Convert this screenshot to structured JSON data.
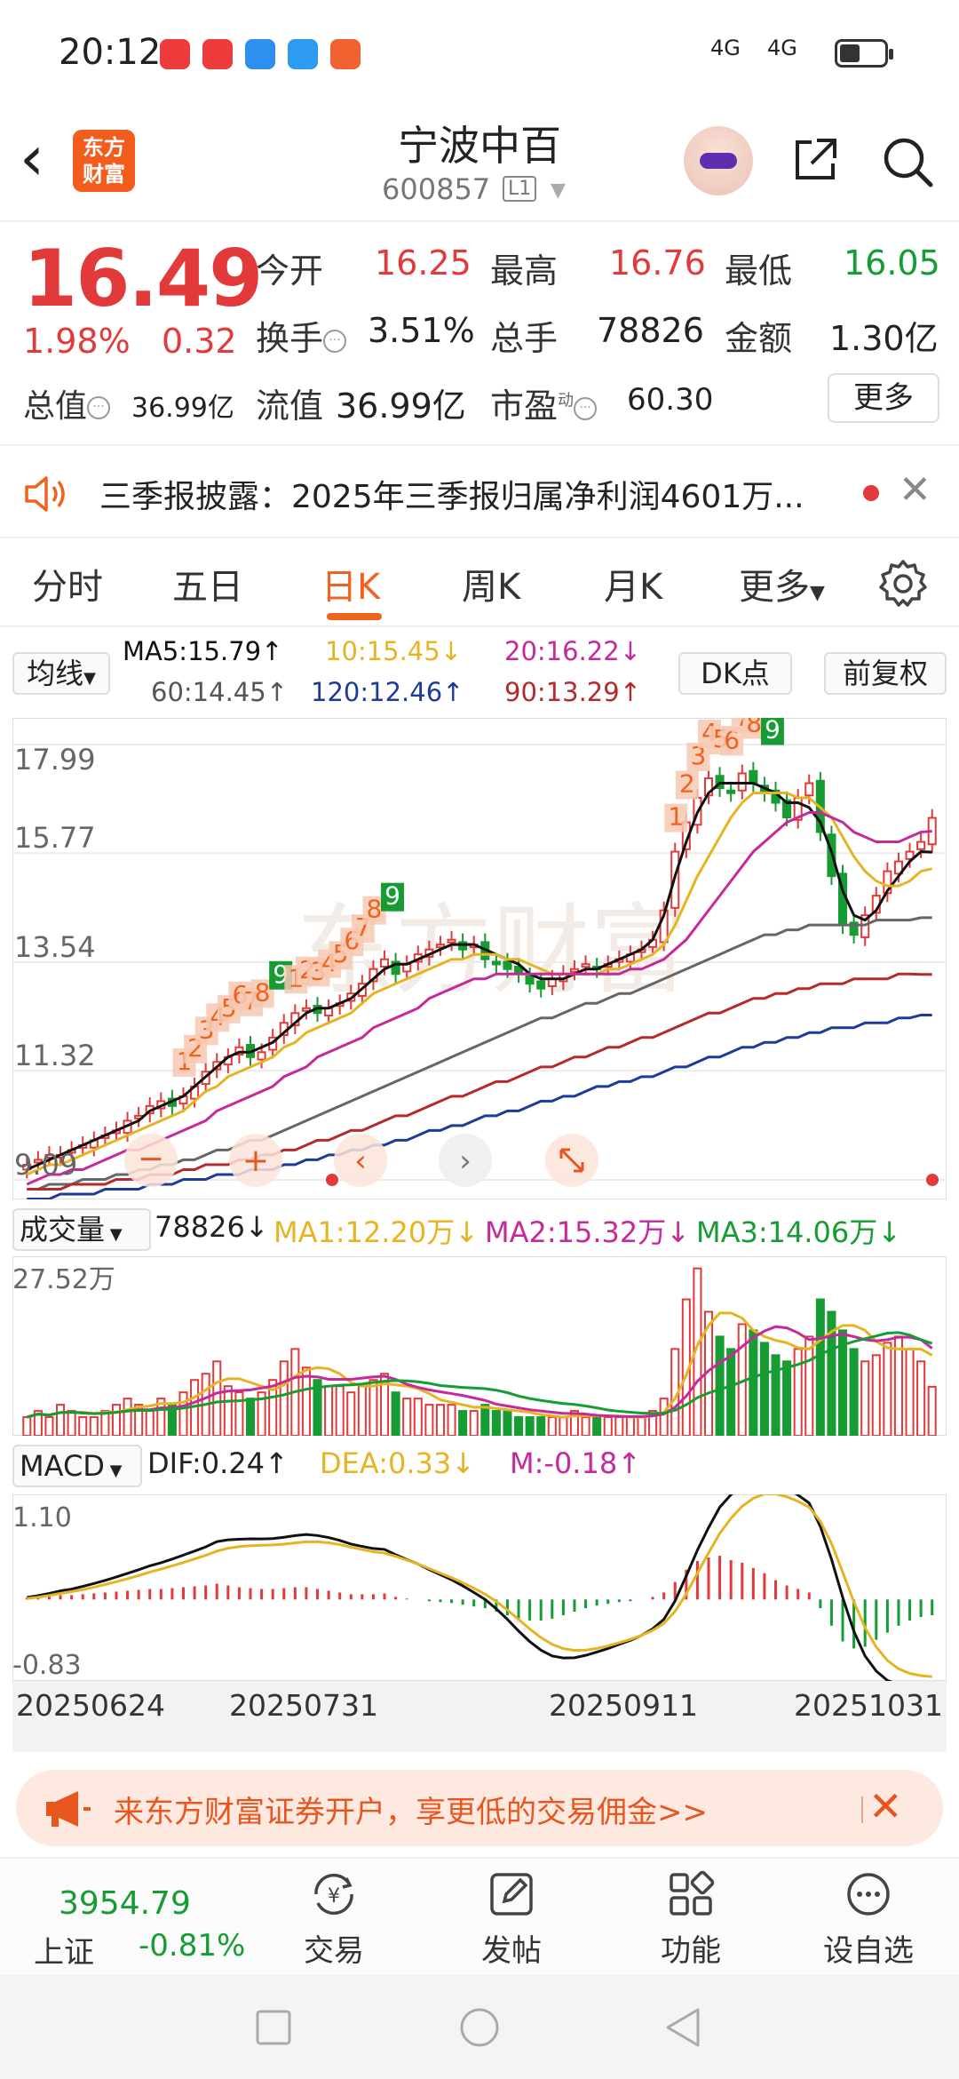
{
  "status_bar": {
    "time": "20:12",
    "signal1": "4G",
    "signal2": "4G"
  },
  "header": {
    "logo_line1": "东方",
    "logo_line2": "财富",
    "stock_name": "宁波中百",
    "stock_code": "600857",
    "level": "L1"
  },
  "quote": {
    "price": "16.49",
    "change_pct": "1.98%",
    "change_amt": "0.32",
    "open_label": "今开",
    "open": "16.25",
    "high_label": "最高",
    "high": "16.76",
    "low_label": "最低",
    "low": "16.05",
    "turnover_label": "换手",
    "turnover": "3.51%",
    "volume_label": "总手",
    "volume": "78826",
    "amount_label": "金额",
    "amount": "1.30亿",
    "total_value_label": "总值",
    "total_value": "36.99亿",
    "float_value_label": "流值",
    "float_value": "36.99亿",
    "pe_label": "市盈",
    "pe_sup": "动",
    "pe": "60.30",
    "more_label": "更多"
  },
  "announcement": {
    "text": "三季报披露：2025年三季报归属净利润4601万..."
  },
  "tabs": [
    {
      "label": "分时"
    },
    {
      "label": "五日"
    },
    {
      "label": "日K"
    },
    {
      "label": "周K"
    },
    {
      "label": "月K"
    },
    {
      "label": "更多"
    }
  ],
  "ma_row": {
    "toggle": "均线",
    "ma5": "MA5:15.79↑",
    "ma10": "10:15.45↓",
    "ma20": "20:16.22↓",
    "ma60": "60:14.45↑",
    "ma120": "120:12.46↑",
    "ma90": "90:13.29↑",
    "dk_button": "DK点",
    "fq_button": "前复权"
  },
  "colors": {
    "up": "#e23a3a",
    "down": "#169c33",
    "accent": "#f0631c",
    "ma5": "#111111",
    "ma10": "#e6b422",
    "ma20": "#c62a9a",
    "ma60": "#666666",
    "ma90": "#b52a2a",
    "ma120": "#1e3a9a"
  },
  "chart_data": [
    {
      "type": "candlestick",
      "title": "",
      "y_ticks": [
        "17.99",
        "15.77",
        "13.54",
        "11.32",
        "9.09"
      ],
      "ylim": [
        9.09,
        17.99
      ],
      "x_ticks": [
        "20250624",
        "20250731",
        "20250911",
        "20251031"
      ],
      "signal_labels": [
        "1",
        "2",
        "3",
        "4",
        "5",
        "6",
        "7",
        "8",
        "9",
        "1",
        "2",
        "3",
        "4",
        "5",
        "6",
        "7",
        "8",
        "9",
        "1",
        "2",
        "3",
        "4",
        "5",
        "6",
        "7",
        "8",
        "9"
      ],
      "close": [
        9.4,
        9.5,
        9.6,
        9.6,
        9.7,
        9.8,
        9.9,
        10.0,
        10.1,
        10.3,
        10.4,
        10.6,
        10.7,
        10.6,
        10.8,
        11.0,
        11.3,
        11.5,
        11.6,
        11.8,
        11.6,
        11.7,
        12.0,
        12.3,
        12.5,
        12.6,
        12.5,
        12.6,
        12.7,
        12.9,
        13.1,
        13.4,
        13.6,
        13.3,
        13.5,
        13.7,
        13.8,
        13.9,
        14.0,
        13.8,
        13.9,
        13.6,
        13.5,
        13.4,
        13.3,
        13.1,
        13.0,
        13.2,
        13.3,
        13.4,
        13.5,
        13.4,
        13.5,
        13.6,
        13.7,
        13.8,
        14.0,
        14.6,
        15.8,
        16.4,
        16.9,
        17.3,
        17.1,
        17.0,
        17.4,
        17.2,
        17.0,
        16.8,
        16.5,
        16.9,
        17.2,
        16.2,
        15.3,
        14.3,
        14.1,
        14.5,
        14.9,
        15.4,
        15.6,
        15.8,
        16.0,
        16.49
      ],
      "ma5": [
        9.3,
        9.4,
        9.5,
        9.6,
        9.7,
        9.8,
        9.9,
        10.0,
        10.1,
        10.2,
        10.3,
        10.5,
        10.6,
        10.7,
        10.8,
        11.0,
        11.2,
        11.4,
        11.6,
        11.7,
        11.7,
        11.8,
        11.9,
        12.1,
        12.3,
        12.5,
        12.6,
        12.6,
        12.7,
        12.8,
        13.0,
        13.2,
        13.4,
        13.5,
        13.5,
        13.6,
        13.7,
        13.8,
        13.9,
        13.9,
        13.9,
        13.8,
        13.7,
        13.6,
        13.5,
        13.3,
        13.2,
        13.2,
        13.2,
        13.3,
        13.4,
        13.4,
        13.5,
        13.6,
        13.7,
        13.8,
        14.0,
        14.5,
        15.3,
        16.0,
        16.6,
        17.0,
        17.2,
        17.2,
        17.2,
        17.2,
        17.1,
        17.0,
        16.8,
        16.8,
        16.7,
        16.4,
        15.8,
        15.0,
        14.5,
        14.4,
        14.6,
        15.0,
        15.3,
        15.6,
        15.8,
        15.79
      ],
      "ma10": [
        9.2,
        9.3,
        9.4,
        9.4,
        9.5,
        9.6,
        9.7,
        9.8,
        9.9,
        10.0,
        10.1,
        10.2,
        10.3,
        10.4,
        10.5,
        10.7,
        10.9,
        11.0,
        11.2,
        11.3,
        11.4,
        11.5,
        11.6,
        11.8,
        11.9,
        12.1,
        12.2,
        12.3,
        12.4,
        12.5,
        12.7,
        12.9,
        13.0,
        13.1,
        13.2,
        13.3,
        13.4,
        13.5,
        13.6,
        13.6,
        13.7,
        13.7,
        13.7,
        13.6,
        13.6,
        13.5,
        13.4,
        13.3,
        13.3,
        13.3,
        13.3,
        13.3,
        13.4,
        13.4,
        13.5,
        13.6,
        13.7,
        13.9,
        14.3,
        14.8,
        15.3,
        15.7,
        16.1,
        16.5,
        16.8,
        17.0,
        17.0,
        17.0,
        17.0,
        16.9,
        16.9,
        16.7,
        16.5,
        16.1,
        15.7,
        15.4,
        15.2,
        15.1,
        15.1,
        15.2,
        15.4,
        15.45
      ],
      "ma20": [
        9.0,
        9.1,
        9.2,
        9.2,
        9.3,
        9.3,
        9.4,
        9.5,
        9.6,
        9.7,
        9.7,
        9.8,
        9.9,
        10.0,
        10.1,
        10.2,
        10.3,
        10.5,
        10.6,
        10.7,
        10.8,
        10.9,
        11.0,
        11.2,
        11.3,
        11.4,
        11.6,
        11.7,
        11.8,
        11.9,
        12.0,
        12.2,
        12.3,
        12.4,
        12.5,
        12.6,
        12.8,
        12.9,
        13.0,
        13.1,
        13.2,
        13.2,
        13.3,
        13.3,
        13.3,
        13.3,
        13.3,
        13.3,
        13.3,
        13.3,
        13.3,
        13.3,
        13.3,
        13.3,
        13.4,
        13.4,
        13.5,
        13.6,
        13.8,
        14.0,
        14.3,
        14.6,
        14.9,
        15.2,
        15.5,
        15.8,
        16.0,
        16.2,
        16.4,
        16.5,
        16.6,
        16.6,
        16.5,
        16.4,
        16.2,
        16.1,
        16.0,
        16.0,
        16.0,
        16.1,
        16.2,
        16.22
      ],
      "ma60": [
        8.9,
        8.9,
        9.0,
        9.0,
        9.0,
        9.1,
        9.1,
        9.1,
        9.2,
        9.2,
        9.3,
        9.3,
        9.4,
        9.4,
        9.5,
        9.5,
        9.6,
        9.7,
        9.7,
        9.8,
        9.9,
        9.9,
        10.0,
        10.1,
        10.2,
        10.3,
        10.4,
        10.5,
        10.6,
        10.7,
        10.8,
        10.9,
        11.0,
        11.1,
        11.2,
        11.3,
        11.4,
        11.5,
        11.6,
        11.7,
        11.8,
        11.9,
        12.0,
        12.1,
        12.2,
        12.3,
        12.4,
        12.4,
        12.5,
        12.6,
        12.7,
        12.7,
        12.8,
        12.9,
        12.9,
        13.0,
        13.1,
        13.2,
        13.3,
        13.4,
        13.5,
        13.6,
        13.7,
        13.8,
        13.9,
        14.0,
        14.1,
        14.1,
        14.2,
        14.2,
        14.3,
        14.3,
        14.3,
        14.3,
        14.3,
        14.3,
        14.4,
        14.4,
        14.4,
        14.4,
        14.45,
        14.45
      ],
      "ma90": [
        8.9,
        8.9,
        8.9,
        8.9,
        9.0,
        9.0,
        9.0,
        9.0,
        9.1,
        9.1,
        9.1,
        9.2,
        9.2,
        9.2,
        9.3,
        9.3,
        9.4,
        9.4,
        9.4,
        9.5,
        9.5,
        9.6,
        9.6,
        9.7,
        9.7,
        9.8,
        9.9,
        9.9,
        10.0,
        10.1,
        10.1,
        10.2,
        10.3,
        10.4,
        10.4,
        10.5,
        10.6,
        10.7,
        10.8,
        10.8,
        10.9,
        11.0,
        11.1,
        11.1,
        11.2,
        11.3,
        11.4,
        11.4,
        11.5,
        11.6,
        11.6,
        11.7,
        11.8,
        11.8,
        11.9,
        12.0,
        12.0,
        12.1,
        12.2,
        12.3,
        12.4,
        12.5,
        12.5,
        12.6,
        12.7,
        12.8,
        12.8,
        12.9,
        12.9,
        13.0,
        13.0,
        13.1,
        13.1,
        13.1,
        13.2,
        13.2,
        13.2,
        13.2,
        13.3,
        13.3,
        13.29,
        13.29
      ],
      "ma120": [
        8.7,
        8.7,
        8.7,
        8.8,
        8.8,
        8.8,
        8.8,
        8.9,
        8.9,
        8.9,
        8.9,
        9.0,
        9.0,
        9.0,
        9.1,
        9.1,
        9.1,
        9.2,
        9.2,
        9.2,
        9.3,
        9.3,
        9.3,
        9.4,
        9.4,
        9.5,
        9.5,
        9.6,
        9.6,
        9.7,
        9.7,
        9.8,
        9.8,
        9.9,
        9.9,
        10.0,
        10.1,
        10.1,
        10.2,
        10.2,
        10.3,
        10.4,
        10.4,
        10.5,
        10.5,
        10.6,
        10.7,
        10.7,
        10.8,
        10.8,
        10.9,
        11.0,
        11.0,
        11.1,
        11.1,
        11.2,
        11.2,
        11.3,
        11.4,
        11.4,
        11.5,
        11.6,
        11.6,
        11.7,
        11.8,
        11.8,
        11.9,
        11.9,
        12.0,
        12.0,
        12.1,
        12.1,
        12.2,
        12.2,
        12.2,
        12.3,
        12.3,
        12.3,
        12.4,
        12.4,
        12.46,
        12.46
      ]
    },
    {
      "type": "bar",
      "title": "成交量",
      "y_ticks": [
        "27.52万"
      ],
      "ylim": [
        0,
        27.52
      ],
      "values": [
        3,
        4,
        3,
        5,
        4,
        3,
        3,
        4,
        5,
        6,
        5,
        4,
        6,
        5,
        7,
        9,
        10,
        12,
        8,
        7,
        6,
        7,
        9,
        12,
        14,
        11,
        9,
        8,
        8,
        7,
        8,
        9,
        10,
        7,
        6,
        6,
        5,
        5,
        5,
        4,
        4,
        5,
        4,
        4,
        3,
        3,
        3,
        3,
        3,
        4,
        3,
        3,
        3,
        3,
        3,
        3,
        4,
        6,
        14,
        22,
        27,
        20,
        16,
        14,
        18,
        17,
        15,
        13,
        12,
        14,
        16,
        22,
        20,
        17,
        14,
        12,
        13,
        15,
        16,
        14,
        12,
        7.9
      ],
      "ma1": "78826↓",
      "ma1_label": "MA1:12.20万↓",
      "ma2_label": "MA2:15.32万↓",
      "ma3_label": "MA3:14.06万↓"
    },
    {
      "type": "bar",
      "title": "MACD",
      "y_ticks": [
        "1.10",
        "-0.83"
      ],
      "ylim": [
        -0.83,
        1.1
      ],
      "dif_label": "DIF:0.24↑",
      "dea_label": "DEA:0.33↓",
      "m_label": "M:-0.18↑",
      "hist": [
        0.02,
        0.03,
        0.04,
        0.05,
        0.05,
        0.06,
        0.07,
        0.08,
        0.09,
        0.1,
        0.11,
        0.12,
        0.12,
        0.13,
        0.14,
        0.15,
        0.16,
        0.18,
        0.16,
        0.14,
        0.13,
        0.12,
        0.12,
        0.13,
        0.14,
        0.14,
        0.12,
        0.1,
        0.08,
        0.06,
        0.06,
        0.06,
        0.07,
        0.03,
        0.01,
        0.0,
        -0.02,
        -0.03,
        -0.04,
        -0.06,
        -0.08,
        -0.1,
        -0.14,
        -0.18,
        -0.22,
        -0.24,
        -0.24,
        -0.22,
        -0.18,
        -0.14,
        -0.1,
        -0.07,
        -0.05,
        -0.03,
        -0.02,
        0.0,
        0.03,
        0.08,
        0.2,
        0.34,
        0.44,
        0.48,
        0.5,
        0.45,
        0.42,
        0.36,
        0.3,
        0.22,
        0.16,
        0.12,
        0.08,
        -0.1,
        -0.3,
        -0.48,
        -0.56,
        -0.54,
        -0.46,
        -0.38,
        -0.3,
        -0.24,
        -0.2,
        -0.18
      ]
    }
  ],
  "date_axis": [
    "20250624",
    "20250731",
    "20250911",
    "20251031"
  ],
  "promo": {
    "text": "来东方财富证券开户，享更低的交易佣金>>"
  },
  "bottom_nav": {
    "index_value": "3954.79",
    "index_name": "上证",
    "index_change": "-0.81%",
    "items": [
      {
        "label": "交易"
      },
      {
        "label": "发帖"
      },
      {
        "label": "功能"
      },
      {
        "label": "设自选"
      }
    ]
  }
}
